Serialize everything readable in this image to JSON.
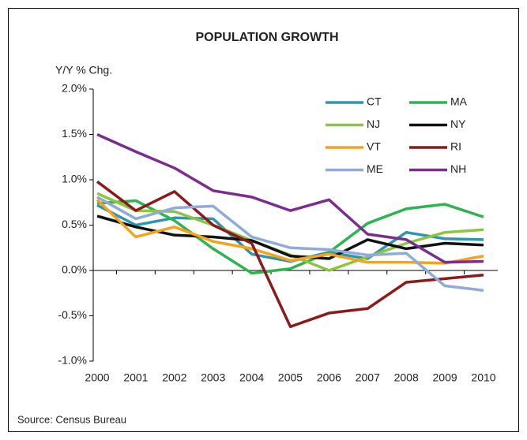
{
  "chart_data": {
    "type": "line",
    "title": "POPULATION GROWTH",
    "y_label": "Y/Y % Chg.",
    "source": "Source: Census Bureau",
    "categories": [
      "2000",
      "2001",
      "2002",
      "2003",
      "2004",
      "2005",
      "2006",
      "2007",
      "2008",
      "2009",
      "2010"
    ],
    "ylim": [
      -1.0,
      2.0
    ],
    "yticks": [
      {
        "value": -1.0,
        "label": "-1.0%"
      },
      {
        "value": -0.5,
        "label": "-0.5%"
      },
      {
        "value": 0.0,
        "label": "0.0%"
      },
      {
        "value": 0.5,
        "label": "0.5%"
      },
      {
        "value": 1.0,
        "label": "1.0%"
      },
      {
        "value": 1.5,
        "label": "1.5%"
      },
      {
        "value": 2.0,
        "label": "2.0%"
      }
    ],
    "grid": false,
    "legend": "upper right",
    "series": [
      {
        "name": "CT",
        "color": "#2e96b0",
        "values": [
          0.72,
          0.5,
          0.58,
          0.57,
          0.18,
          0.1,
          0.2,
          0.13,
          0.42,
          0.35,
          0.34
        ]
      },
      {
        "name": "MA",
        "color": "#2eb350",
        "values": [
          0.74,
          0.77,
          0.55,
          0.24,
          -0.03,
          0.02,
          0.2,
          0.52,
          0.68,
          0.73,
          0.59
        ]
      },
      {
        "name": "NJ",
        "color": "#8cc63f",
        "values": [
          0.85,
          0.66,
          0.65,
          0.5,
          0.33,
          0.17,
          0.0,
          0.15,
          0.3,
          0.42,
          0.45
        ]
      },
      {
        "name": "NY",
        "color": "#111111",
        "values": [
          0.6,
          0.48,
          0.39,
          0.37,
          0.33,
          0.16,
          0.13,
          0.34,
          0.24,
          0.3,
          0.28
        ]
      },
      {
        "name": "VT",
        "color": "#f7a21b",
        "values": [
          0.78,
          0.37,
          0.48,
          0.32,
          0.24,
          0.11,
          0.18,
          0.09,
          0.09,
          0.08,
          0.16
        ]
      },
      {
        "name": "RI",
        "color": "#8b1a1a",
        "values": [
          0.98,
          0.66,
          0.87,
          0.5,
          0.3,
          -0.62,
          -0.47,
          -0.42,
          -0.13,
          -0.09,
          -0.05
        ]
      },
      {
        "name": "ME",
        "color": "#8faadc",
        "values": [
          0.81,
          0.57,
          0.69,
          0.71,
          0.37,
          0.25,
          0.23,
          0.17,
          0.19,
          -0.17,
          -0.22
        ]
      },
      {
        "name": "NH",
        "color": "#7b2d8e",
        "values": [
          1.5,
          1.31,
          1.13,
          0.88,
          0.81,
          0.66,
          0.78,
          0.4,
          0.34,
          0.09,
          0.1
        ]
      }
    ]
  }
}
